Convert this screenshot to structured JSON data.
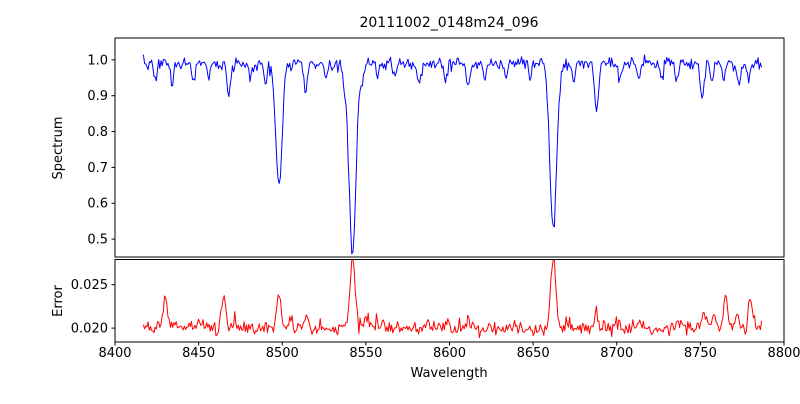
{
  "title": "20111002_0148m24_096",
  "chart_data": {
    "type": "line",
    "title": "20111002_0148m24_096",
    "xlabel": "Wavelength",
    "x_range": [
      8400,
      8800
    ],
    "x_ticks": [
      8400,
      8450,
      8500,
      8550,
      8600,
      8650,
      8700,
      8750,
      8800
    ],
    "x_data_range": [
      8417,
      8787
    ],
    "sample_step": 0.7,
    "grid": false,
    "legend": false,
    "panels": [
      {
        "name": "spectrum",
        "ylabel": "Spectrum",
        "color": "#0000ff",
        "ylim": [
          0.45,
          1.061
        ],
        "yticks": [
          0.5,
          0.6,
          0.7,
          0.8,
          0.9,
          1.0
        ],
        "y_decimals": 1,
        "base": 0.997,
        "noise": {
          "sym": 0.0065,
          "down": 0.009
        },
        "lines": [
          {
            "center": 8424,
            "depth": 0.05,
            "width": 0.9
          },
          {
            "center": 8434,
            "depth": 0.07,
            "width": 0.9
          },
          {
            "center": 8447,
            "depth": 0.05,
            "width": 0.9
          },
          {
            "center": 8456,
            "depth": 0.04,
            "width": 0.8
          },
          {
            "center": 8468,
            "depth": 0.09,
            "width": 1.0
          },
          {
            "center": 8481,
            "depth": 0.04,
            "width": 0.8
          },
          {
            "center": 8490,
            "depth": 0.06,
            "width": 0.9
          },
          {
            "center": 8498,
            "depth": 0.335,
            "width": 1.9
          },
          {
            "center": 8514,
            "depth": 0.08,
            "width": 1.0
          },
          {
            "center": 8526,
            "depth": 0.04,
            "width": 0.9
          },
          {
            "center": 8537,
            "depth": 0.05,
            "width": 0.9
          },
          {
            "center": 8542,
            "depth": 0.53,
            "width": 2.1
          },
          {
            "center": 8548,
            "depth": 0.05,
            "width": 1.0
          },
          {
            "center": 8557,
            "depth": 0.04,
            "width": 0.9
          },
          {
            "center": 8567,
            "depth": 0.04,
            "width": 0.9
          },
          {
            "center": 8582,
            "depth": 0.06,
            "width": 1.0
          },
          {
            "center": 8598,
            "depth": 0.05,
            "width": 0.9
          },
          {
            "center": 8611,
            "depth": 0.07,
            "width": 1.0
          },
          {
            "center": 8621,
            "depth": 0.05,
            "width": 0.9
          },
          {
            "center": 8634,
            "depth": 0.04,
            "width": 0.9
          },
          {
            "center": 8648,
            "depth": 0.04,
            "width": 0.9
          },
          {
            "center": 8662,
            "depth": 0.47,
            "width": 2.0
          },
          {
            "center": 8674,
            "depth": 0.05,
            "width": 0.9
          },
          {
            "center": 8688,
            "depth": 0.135,
            "width": 1.2
          },
          {
            "center": 8702,
            "depth": 0.04,
            "width": 0.9
          },
          {
            "center": 8713,
            "depth": 0.05,
            "width": 0.9
          },
          {
            "center": 8727,
            "depth": 0.04,
            "width": 0.9
          },
          {
            "center": 8736,
            "depth": 0.06,
            "width": 1.0
          },
          {
            "center": 8751,
            "depth": 0.1,
            "width": 1.1
          },
          {
            "center": 8757,
            "depth": 0.05,
            "width": 0.9
          },
          {
            "center": 8764,
            "depth": 0.05,
            "width": 0.9
          },
          {
            "center": 8773,
            "depth": 0.06,
            "width": 1.0
          },
          {
            "center": 8779,
            "depth": 0.04,
            "width": 0.9
          }
        ]
      },
      {
        "name": "error",
        "ylabel": "Error",
        "color": "#ff0000",
        "ylim": [
          0.0184,
          0.0279
        ],
        "yticks": [
          0.02,
          0.025
        ],
        "y_decimals": 3,
        "base": 0.0196,
        "noise": {
          "sym": 0.00028,
          "up": 0.00045
        },
        "peaks": [
          {
            "center": 8430,
            "height": 0.0036,
            "width": 1.2
          },
          {
            "center": 8436,
            "height": 0.0008,
            "width": 1.0
          },
          {
            "center": 8450,
            "height": 0.0013,
            "width": 1.2
          },
          {
            "center": 8465,
            "height": 0.0033,
            "width": 1.2
          },
          {
            "center": 8472,
            "height": 0.001,
            "width": 1.0
          },
          {
            "center": 8498,
            "height": 0.004,
            "width": 1.4
          },
          {
            "center": 8505,
            "height": 0.0012,
            "width": 1.0
          },
          {
            "center": 8514,
            "height": 0.0016,
            "width": 1.2
          },
          {
            "center": 8542,
            "height": 0.0082,
            "width": 1.6
          },
          {
            "center": 8550,
            "height": 0.0012,
            "width": 1.5
          },
          {
            "center": 8560,
            "height": 0.0006,
            "width": 1.5
          },
          {
            "center": 8585,
            "height": 0.0007,
            "width": 1.5
          },
          {
            "center": 8598,
            "height": 0.0006,
            "width": 1.2
          },
          {
            "center": 8611,
            "height": 0.0007,
            "width": 1.2
          },
          {
            "center": 8640,
            "height": 0.0005,
            "width": 1.5
          },
          {
            "center": 8662,
            "height": 0.0082,
            "width": 1.6
          },
          {
            "center": 8670,
            "height": 0.0012,
            "width": 1.2
          },
          {
            "center": 8688,
            "height": 0.0016,
            "width": 1.2
          },
          {
            "center": 8700,
            "height": 0.0006,
            "width": 1.2
          },
          {
            "center": 8713,
            "height": 0.0007,
            "width": 1.2
          },
          {
            "center": 8736,
            "height": 0.0008,
            "width": 1.2
          },
          {
            "center": 8752,
            "height": 0.002,
            "width": 1.5
          },
          {
            "center": 8758,
            "height": 0.0014,
            "width": 1.2
          },
          {
            "center": 8765,
            "height": 0.0036,
            "width": 1.3
          },
          {
            "center": 8772,
            "height": 0.0012,
            "width": 1.2
          },
          {
            "center": 8780,
            "height": 0.0034,
            "width": 1.3
          }
        ]
      }
    ]
  }
}
